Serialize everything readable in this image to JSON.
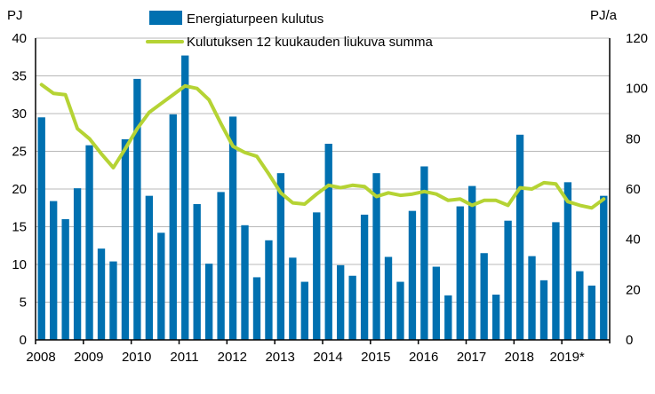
{
  "chart_data": {
    "type": "bar+line",
    "left_axis_label": "PJ",
    "right_axis_label": "PJ/a",
    "ylim_left": [
      0,
      40
    ],
    "ylim_right": [
      0,
      120
    ],
    "yticks_left": [
      0,
      5,
      10,
      15,
      20,
      25,
      30,
      35,
      40
    ],
    "yticks_right": [
      0,
      20,
      40,
      60,
      80,
      100,
      120
    ],
    "x_tick_labels": [
      "2008",
      "2009",
      "2010",
      "2011",
      "2012",
      "2013",
      "2014",
      "2015",
      "2016",
      "2017",
      "2018",
      "2019*"
    ],
    "periods_per_year": 4,
    "grid": true,
    "legend_position": "top",
    "series": [
      {
        "name": "Energiaturpeen kulutus",
        "type": "bar",
        "axis": "left",
        "color": "#0070b0",
        "values": [
          29.5,
          18.4,
          16.0,
          20.1,
          25.8,
          12.1,
          10.4,
          26.6,
          34.6,
          19.1,
          14.2,
          29.9,
          37.7,
          18.0,
          10.1,
          19.6,
          29.6,
          15.2,
          8.3,
          13.2,
          22.1,
          10.9,
          7.7,
          16.9,
          26.0,
          9.9,
          8.5,
          16.6,
          22.1,
          11.0,
          7.7,
          17.1,
          23.0,
          9.7,
          5.9,
          17.7,
          20.4,
          11.5,
          6.0,
          15.8,
          27.2,
          11.1,
          7.9,
          15.6,
          20.9,
          9.1,
          7.2,
          19.1
        ]
      },
      {
        "name": "Kulutuksen 12 kuukauden liukuva summa",
        "type": "line",
        "axis": "right",
        "color": "#b5d334",
        "values": [
          101.5,
          98,
          97.5,
          84,
          80,
          74,
          68.5,
          76,
          84,
          90.5,
          94,
          97.5,
          101,
          100,
          95.5,
          86,
          77,
          74.5,
          73,
          66,
          58.5,
          54.5,
          54,
          58,
          61.5,
          60.5,
          61.5,
          61,
          57,
          58.5,
          57.5,
          58,
          59,
          58,
          55.5,
          56,
          53.5,
          55.5,
          55.5,
          53.5,
          60.5,
          60,
          62.5,
          62,
          55,
          53.5,
          52.5,
          56
        ]
      }
    ]
  }
}
